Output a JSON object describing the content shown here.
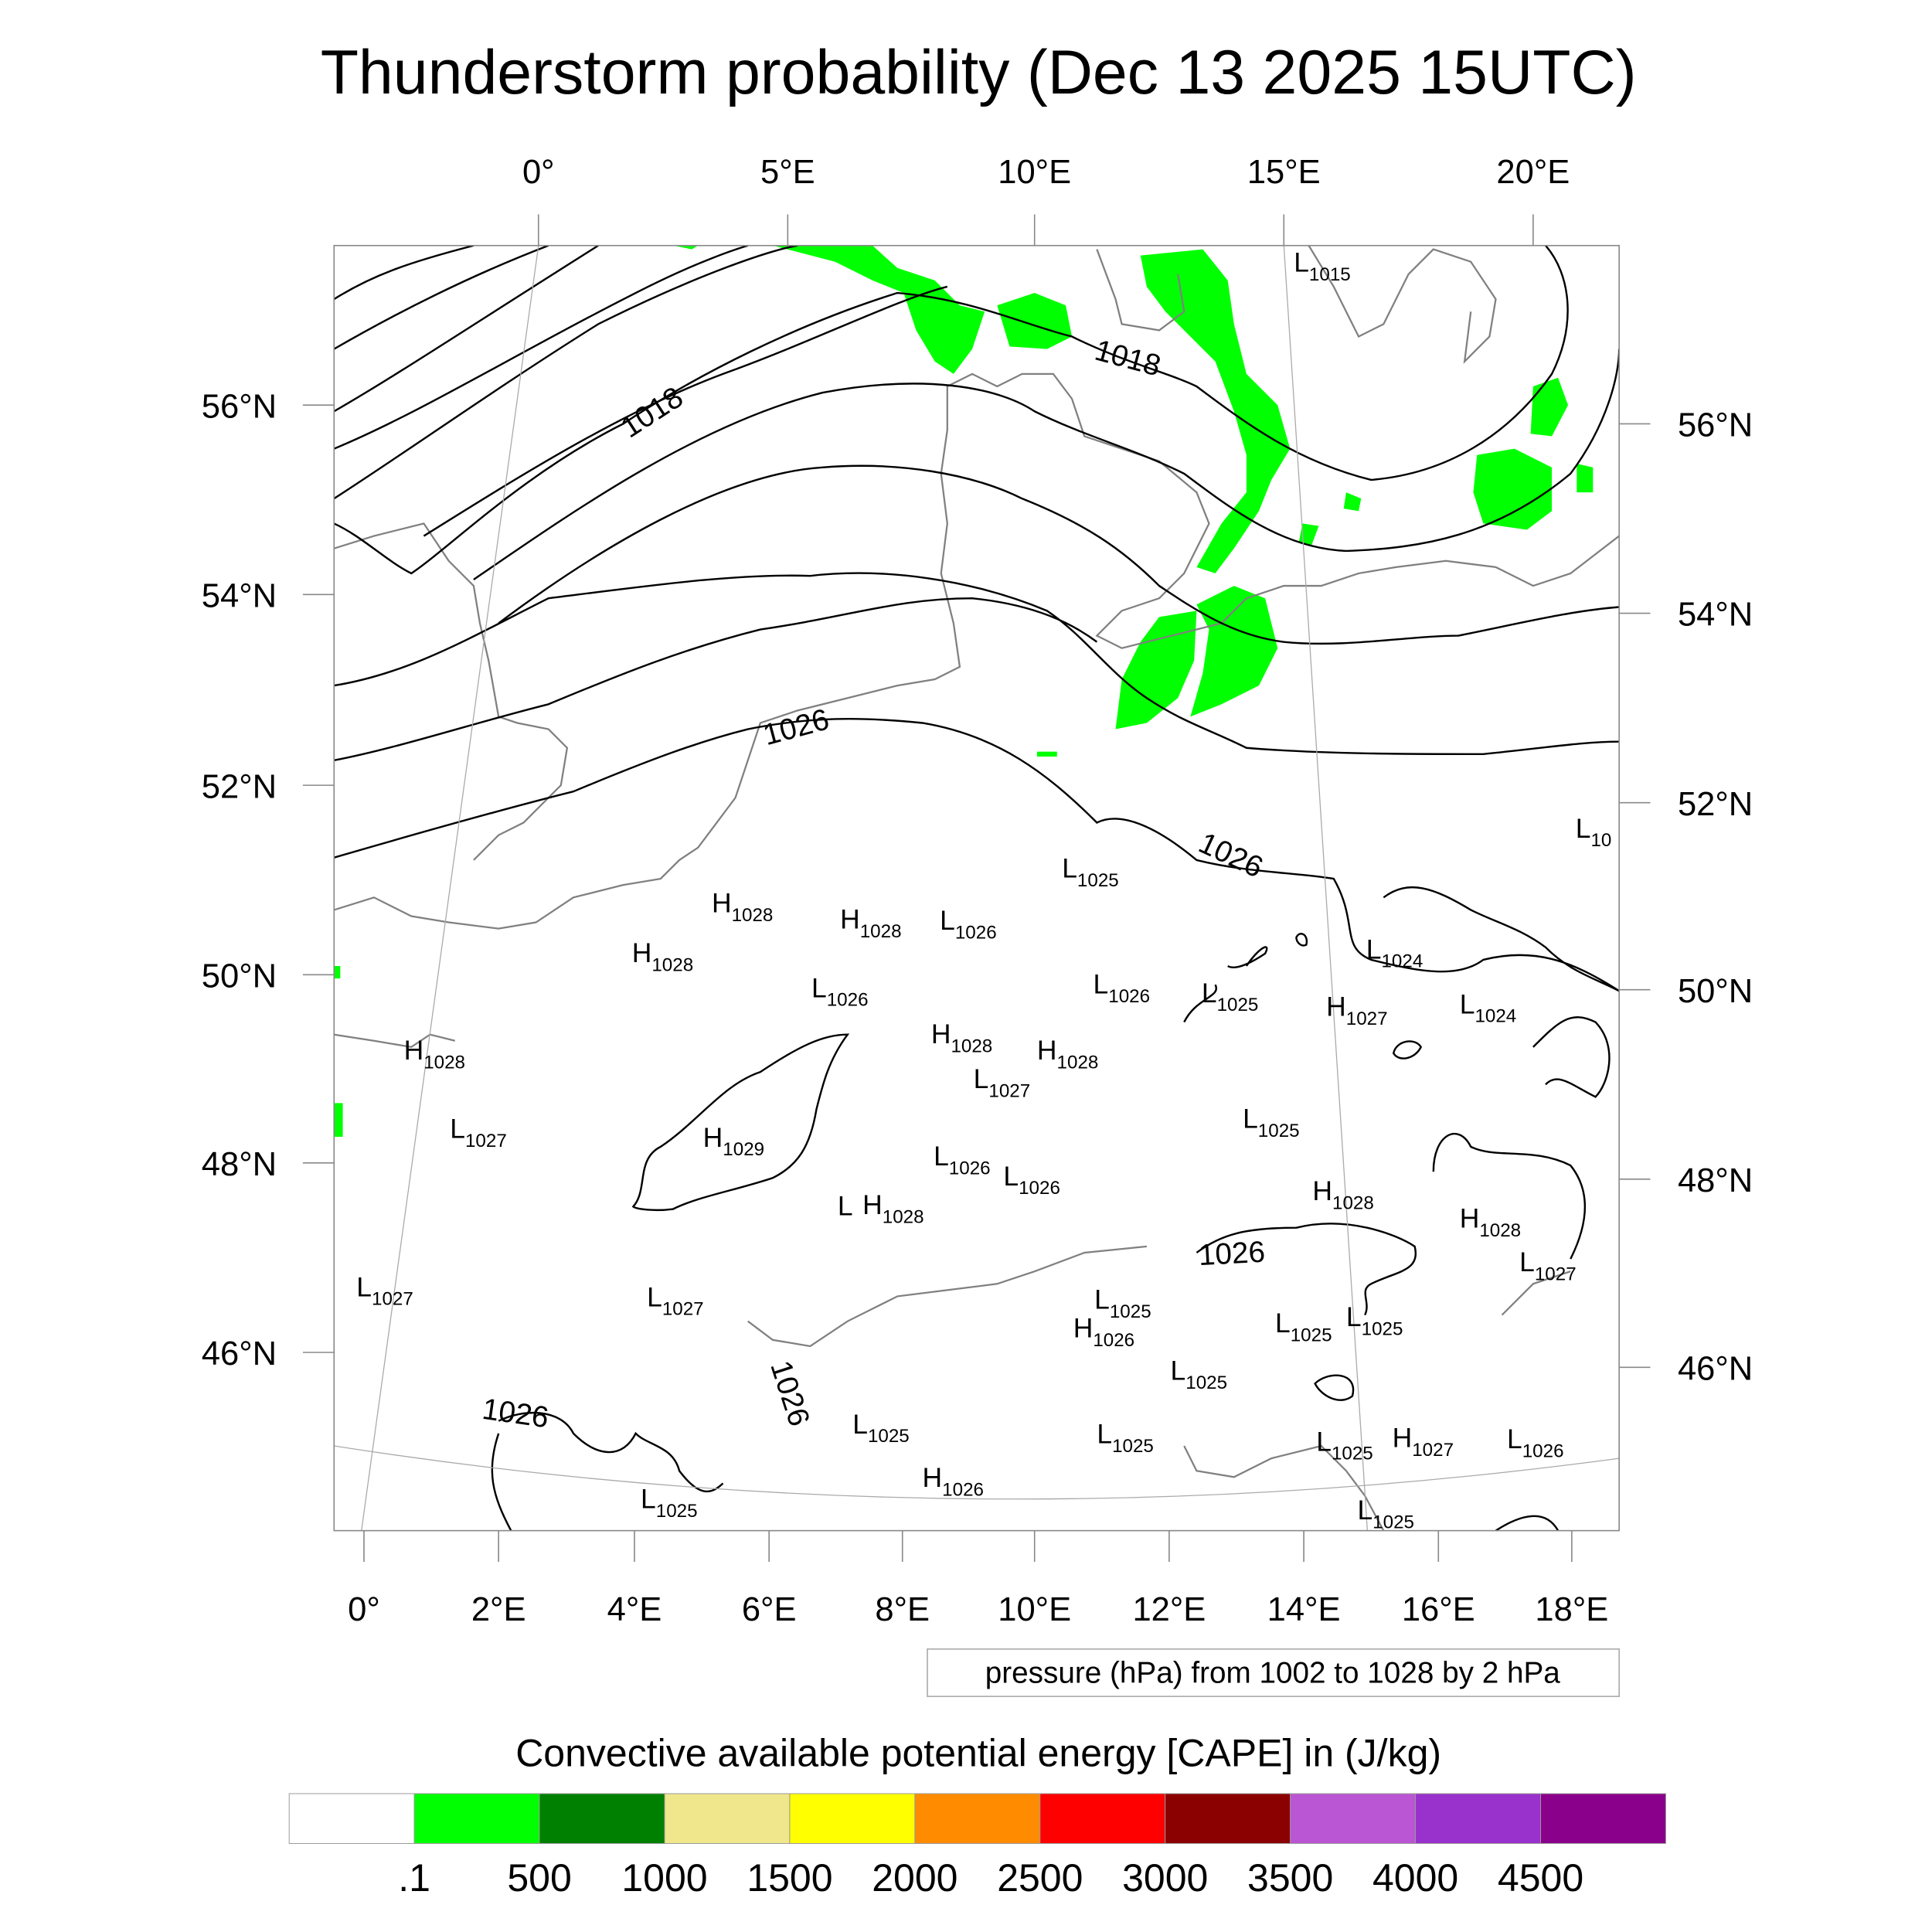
{
  "title": "Thunderstorm probability (Dec 13 2025 15UTC)",
  "axes": {
    "top_lon": [
      "0°",
      "5°E",
      "10°E",
      "15°E",
      "20°E"
    ],
    "bottom_lon": [
      "0°",
      "2°E",
      "4°E",
      "6°E",
      "8°E",
      "10°E",
      "12°E",
      "14°E",
      "16°E",
      "18°E"
    ],
    "left_lat": [
      "56°N",
      "54°N",
      "52°N",
      "50°N",
      "48°N",
      "46°N"
    ],
    "right_lat": [
      "56°N",
      "54°N",
      "52°N",
      "50°N",
      "48°N",
      "46°N"
    ]
  },
  "isobar_labels": [
    "1018",
    "1018",
    "1026",
    "1026",
    "1026",
    "1026",
    "1026"
  ],
  "pressure_centers": [
    {
      "t": "L",
      "v": "1015"
    },
    {
      "t": "H",
      "v": "1028"
    },
    {
      "t": "H",
      "v": "1028"
    },
    {
      "t": "L",
      "v": "1026"
    },
    {
      "t": "H",
      "v": "1028"
    },
    {
      "t": "L",
      "v": "1026"
    },
    {
      "t": "L",
      "v": "1025"
    },
    {
      "t": "L",
      "v": "1026"
    },
    {
      "t": "L",
      "v": "1025"
    },
    {
      "t": "H",
      "v": "1027"
    },
    {
      "t": "L",
      "v": "1024"
    },
    {
      "t": "L",
      "v": "1024"
    },
    {
      "t": "H",
      "v": "1028"
    },
    {
      "t": "H",
      "v": "1028"
    },
    {
      "t": "H",
      "v": "1028"
    },
    {
      "t": "L",
      "v": "1027"
    },
    {
      "t": "L",
      "v": "1025"
    },
    {
      "t": "H",
      "v": "1029"
    },
    {
      "t": "L",
      "v": "1027"
    },
    {
      "t": "L",
      "v": "1026"
    },
    {
      "t": "L",
      "v": "1026"
    },
    {
      "t": "L",
      "v": ""
    },
    {
      "t": "H",
      "v": "1028"
    },
    {
      "t": "H",
      "v": "1028"
    },
    {
      "t": "H",
      "v": "1028"
    },
    {
      "t": "L",
      "v": "1027"
    },
    {
      "t": "L",
      "v": "1027"
    },
    {
      "t": "L",
      "v": "1027"
    },
    {
      "t": "L",
      "v": "1025"
    },
    {
      "t": "H",
      "v": "1026"
    },
    {
      "t": "L",
      "v": "1025"
    },
    {
      "t": "L",
      "v": "1025"
    },
    {
      "t": "L",
      "v": "1025"
    },
    {
      "t": "L",
      "v": "1025"
    },
    {
      "t": "L",
      "v": "1025"
    },
    {
      "t": "L",
      "v": "1025"
    },
    {
      "t": "H",
      "v": "1027"
    },
    {
      "t": "L",
      "v": "1026"
    },
    {
      "t": "H",
      "v": "1026"
    },
    {
      "t": "L",
      "v": "1025"
    },
    {
      "t": "L",
      "v": "1025"
    },
    {
      "t": "L",
      "v": "10"
    }
  ],
  "pressure_note": "pressure (hPa) from 1002 to 1028 by 2 hPa",
  "legend": {
    "title": "Convective available potential energy [CAPE] in (J/kg)",
    "colors": [
      "#ffffff",
      "#00ff00",
      "#008000",
      "#f0e68c",
      "#ffff00",
      "#ff8c00",
      "#ff0000",
      "#8b0000",
      "#ba55d3",
      "#9932cc",
      "#8b008b"
    ],
    "labels": [
      ".1",
      "500",
      "1000",
      "1500",
      "2000",
      "2500",
      "3000",
      "3500",
      "4000",
      "4500"
    ]
  },
  "cape_color": "#00ff00"
}
